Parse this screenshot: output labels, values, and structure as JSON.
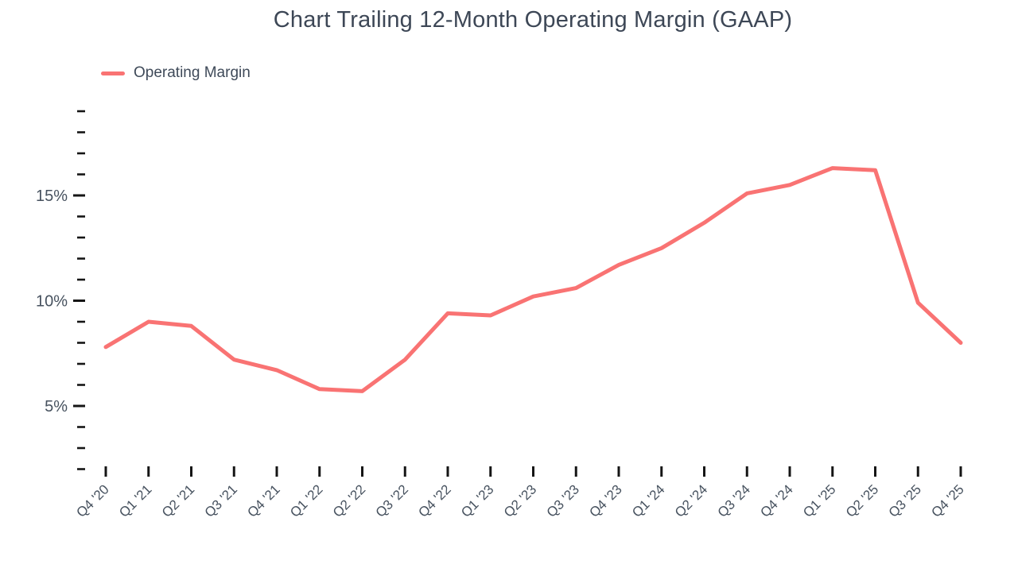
{
  "header": {
    "title": "Chart Trailing 12-Month Operating Margin (GAAP)"
  },
  "legend": {
    "items": [
      {
        "label": "Operating Margin",
        "color": "#f97373"
      }
    ]
  },
  "colors": {
    "accent": "#f97373",
    "title_text": "#3d4756",
    "axis_label_text": "#47525f",
    "tick_mark": "#151515",
    "background": "#ffffff"
  },
  "chart_data": {
    "type": "line",
    "title": "Chart Trailing 12-Month Operating Margin (GAAP)",
    "xlabel": "",
    "ylabel": "",
    "unit": "%",
    "grid": false,
    "legend_position": "top-left",
    "categories": [
      "Q4 '20",
      "Q1 '21",
      "Q2 '21",
      "Q3 '21",
      "Q4 '21",
      "Q1 '22",
      "Q2 '22",
      "Q3 '22",
      "Q4 '22",
      "Q1 '23",
      "Q2 '23",
      "Q3 '23",
      "Q4 '23",
      "Q1 '24",
      "Q2 '24",
      "Q3 '24",
      "Q4 '24",
      "Q1 '25",
      "Q2 '25",
      "Q3 '25",
      "Q4 '25"
    ],
    "series": [
      {
        "name": "Operating Margin",
        "color": "#f97373",
        "values": [
          7.8,
          9.0,
          8.8,
          7.2,
          6.7,
          5.8,
          5.7,
          7.2,
          9.4,
          9.3,
          10.2,
          10.6,
          11.7,
          12.5,
          13.7,
          15.1,
          15.5,
          16.3,
          16.2,
          9.9,
          8.0
        ]
      }
    ],
    "y_axis": {
      "min": 2,
      "max": 19,
      "tick_step": 1,
      "labeled_ticks": [
        {
          "value": 5,
          "label": "5%"
        },
        {
          "value": 10,
          "label": "10%"
        },
        {
          "value": 15,
          "label": "15%"
        }
      ]
    }
  }
}
